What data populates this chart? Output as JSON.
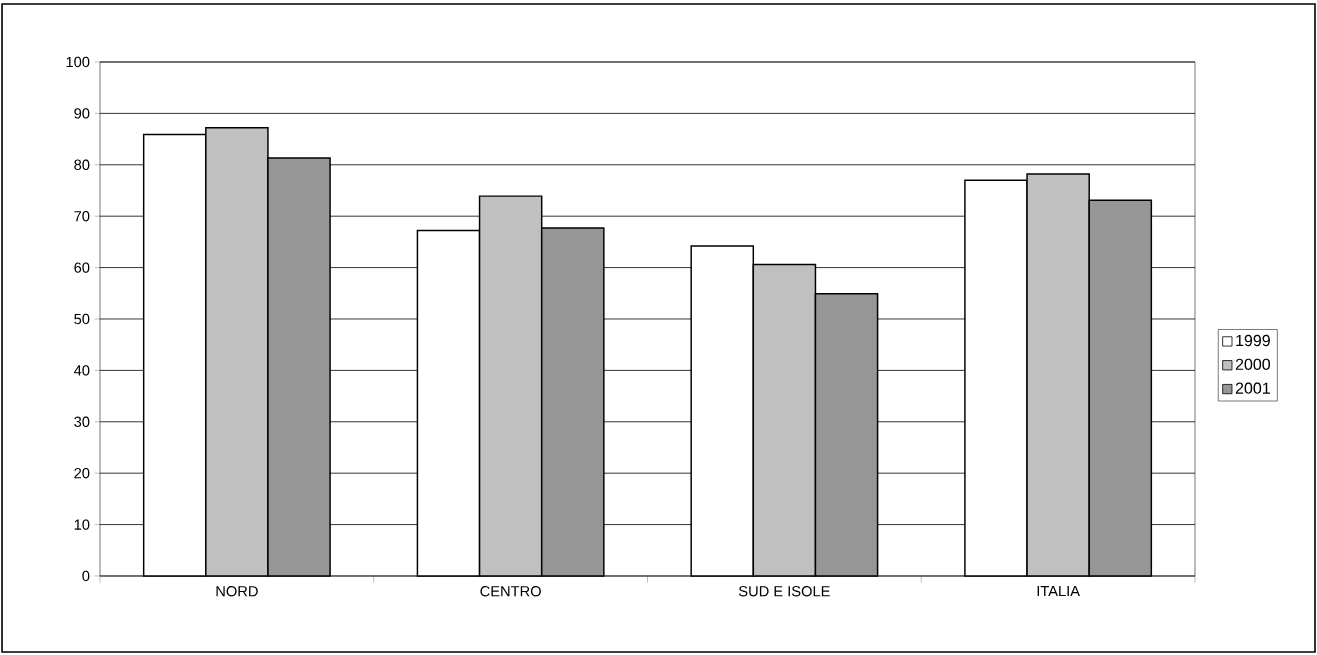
{
  "chart_data": {
    "type": "bar",
    "categories": [
      "NORD",
      "CENTRO",
      "SUD E ISOLE",
      "ITALIA"
    ],
    "series": [
      {
        "name": "1999",
        "color": "#ffffff",
        "values": [
          85.9,
          67.2,
          64.2,
          77.0
        ]
      },
      {
        "name": "2000",
        "color": "#c0c0c0",
        "values": [
          87.2,
          73.9,
          60.6,
          78.2
        ]
      },
      {
        "name": "2001",
        "color": "#969696",
        "values": [
          81.3,
          67.7,
          54.9,
          73.1
        ]
      }
    ],
    "ylim": [
      0,
      100
    ],
    "yticks": [
      0,
      10,
      20,
      30,
      40,
      50,
      60,
      70,
      80,
      90,
      100
    ],
    "grid": "y",
    "legend": "right"
  }
}
